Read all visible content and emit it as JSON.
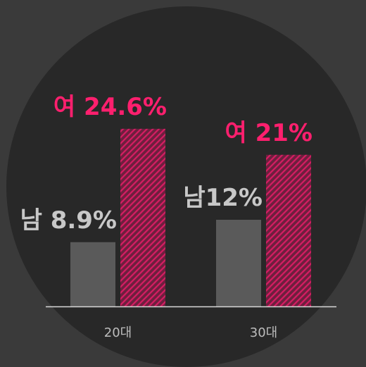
{
  "chart_data": {
    "type": "bar",
    "categories": [
      "20대",
      "30대"
    ],
    "series": [
      {
        "color": "#5a5a5a",
        "values": [
          8.9,
          12
        ],
        "value_labels": [
          "남 8.9%",
          "남12%"
        ]
      },
      {
        "color": "#ff1f6e",
        "values": [
          24.6,
          21
        ],
        "value_labels": [
          "여 24.6%",
          "여 21%"
        ]
      }
    ]
  }
}
